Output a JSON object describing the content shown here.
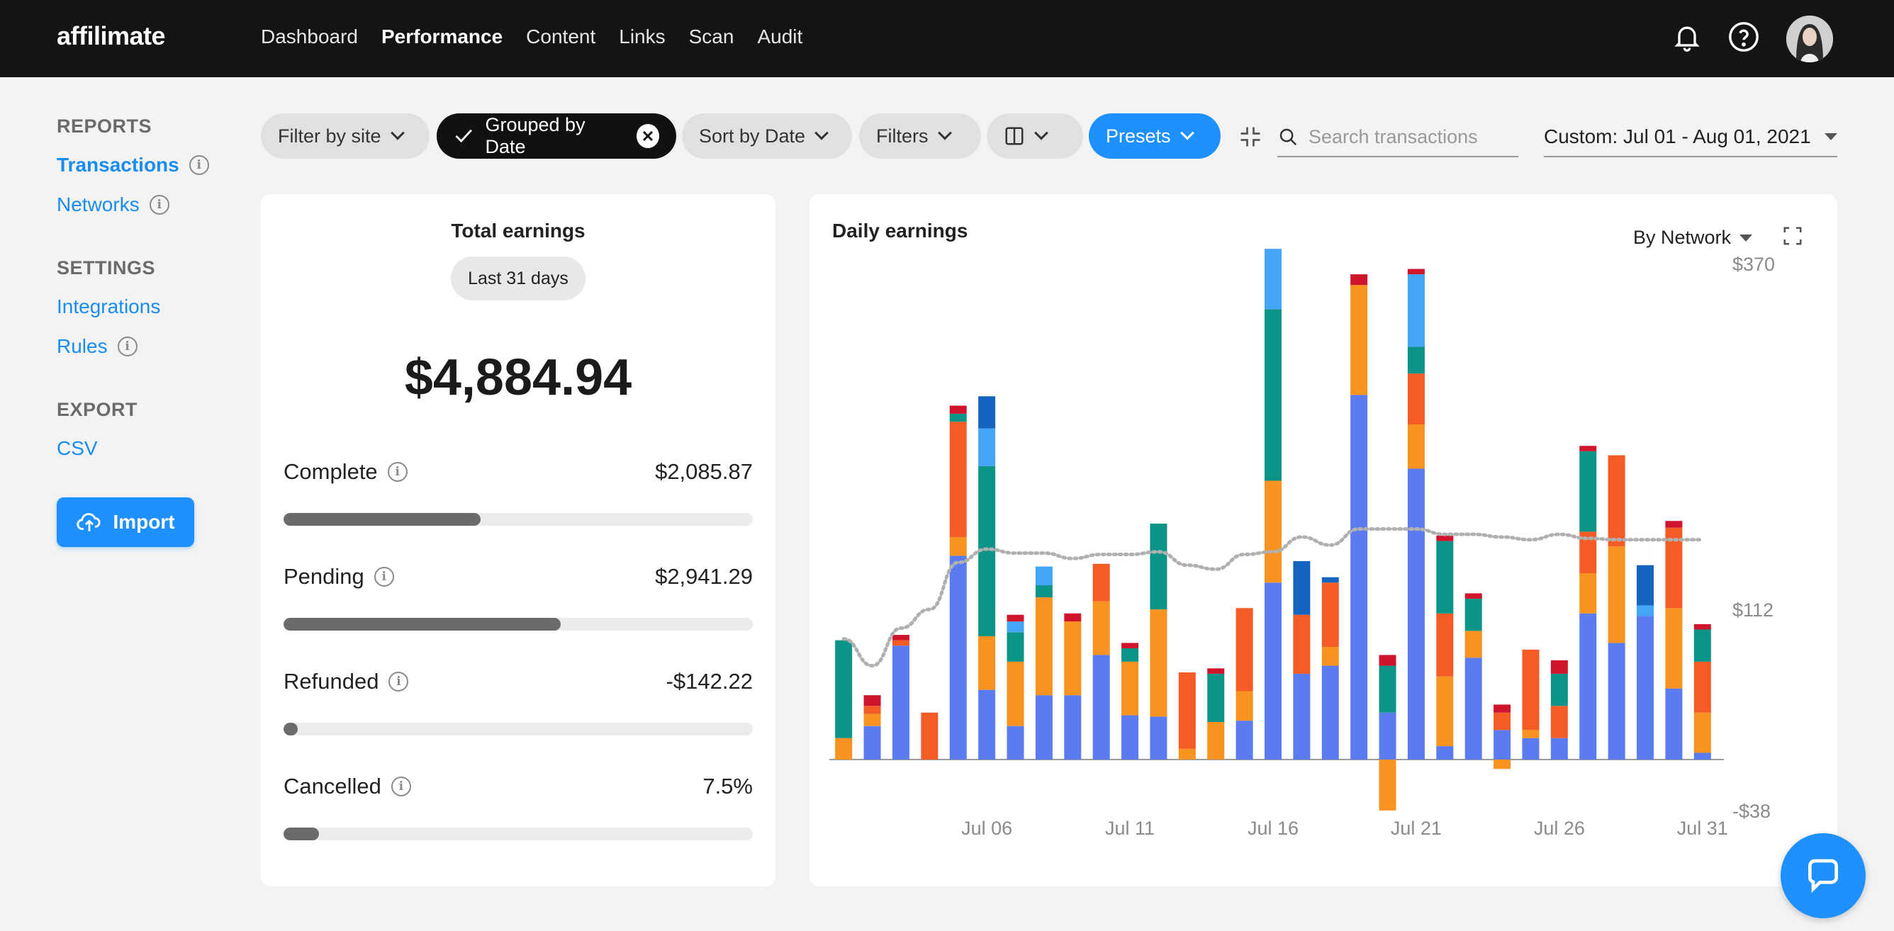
{
  "nav": {
    "logo": "affilimate",
    "links": [
      "Dashboard",
      "Performance",
      "Content",
      "Links",
      "Scan",
      "Audit"
    ],
    "active_link": "Performance"
  },
  "sidebar": {
    "reports_heading": "REPORTS",
    "transactions": "Transactions",
    "networks": "Networks",
    "settings_heading": "SETTINGS",
    "integrations": "Integrations",
    "rules": "Rules",
    "export_heading": "EXPORT",
    "csv": "CSV",
    "import_label": "Import"
  },
  "filters": {
    "filter_by_site": "Filter by site",
    "grouped_by_date": "Grouped by Date",
    "sort_by_date": "Sort by Date",
    "filters": "Filters",
    "presets": "Presets",
    "search_placeholder": "Search transactions",
    "date_range": "Custom: Jul 01 - Aug 01, 2021"
  },
  "total_earnings": {
    "title": "Total earnings",
    "period": "Last 31 days",
    "amount": "$4,884.94",
    "stats": [
      {
        "label": "Complete",
        "value": "$2,085.87",
        "progress": 0.42
      },
      {
        "label": "Pending",
        "value": "$2,941.29",
        "progress": 0.59
      },
      {
        "label": "Refunded",
        "value": "-$142.22",
        "progress": 0.03
      },
      {
        "label": "Cancelled",
        "value": "7.5%",
        "progress": 0.075
      }
    ]
  },
  "daily_earnings": {
    "title": "Daily earnings",
    "group_by": "By Network"
  },
  "colors": {
    "blue": "#5b7cf0",
    "teal": "#0d9488",
    "orange": "#f7931e",
    "red_orange": "#f45b25",
    "light_blue": "#42a5f5",
    "dark_blue": "#1565c0",
    "crimson": "#d0142c",
    "accent": "#1e90ff"
  },
  "chart_data": {
    "type": "bar",
    "stacked": true,
    "ylim": [
      -38,
      370
    ],
    "y_ticks": [
      "$370",
      "$112",
      "-$38"
    ],
    "x_ticks": [
      "Jul 06",
      "Jul 11",
      "Jul 16",
      "Jul 21",
      "Jul 26",
      "Jul 31"
    ],
    "days": [
      "Jul 01",
      "Jul 02",
      "Jul 03",
      "Jul 04",
      "Jul 05",
      "Jul 06",
      "Jul 07",
      "Jul 08",
      "Jul 09",
      "Jul 10",
      "Jul 11",
      "Jul 12",
      "Jul 13",
      "Jul 14",
      "Jul 15",
      "Jul 16",
      "Jul 17",
      "Jul 18",
      "Jul 19",
      "Jul 20",
      "Jul 21",
      "Jul 22",
      "Jul 23",
      "Jul 24",
      "Jul 25",
      "Jul 26",
      "Jul 27",
      "Jul 28",
      "Jul 29",
      "Jul 30",
      "Jul 31"
    ],
    "series": [
      {
        "color_key": "blue",
        "values": [
          0,
          25,
          85,
          0,
          152,
          52,
          25,
          48,
          48,
          78,
          33,
          32,
          0,
          0,
          29,
          132,
          64,
          70,
          272,
          35,
          217,
          10,
          76,
          22,
          16,
          16,
          109,
          87,
          107,
          53,
          5
        ]
      },
      {
        "color_key": "orange",
        "values": [
          16,
          9,
          0,
          0,
          14,
          40,
          48,
          73,
          55,
          40,
          40,
          80,
          8,
          28,
          22,
          76,
          0,
          14,
          82,
          0,
          33,
          52,
          20,
          -7,
          6,
          0,
          30,
          72,
          0,
          60,
          30
        ]
      },
      {
        "color_key": "red_orange",
        "values": [
          0,
          6,
          4,
          35,
          86,
          0,
          0,
          0,
          0,
          28,
          0,
          0,
          57,
          0,
          62,
          0,
          44,
          48,
          0,
          0,
          38,
          47,
          0,
          13,
          60,
          24,
          31,
          68,
          0,
          60,
          38
        ]
      },
      {
        "color_key": "teal",
        "values": [
          73,
          0,
          0,
          0,
          6,
          127,
          22,
          9,
          0,
          0,
          10,
          64,
          0,
          36,
          0,
          128,
          0,
          0,
          0,
          35,
          20,
          54,
          24,
          0,
          0,
          24,
          60,
          0,
          0,
          0,
          24
        ]
      },
      {
        "color_key": "light_blue",
        "values": [
          0,
          0,
          0,
          0,
          0,
          28,
          8,
          14,
          0,
          0,
          0,
          0,
          0,
          0,
          0,
          45,
          0,
          0,
          0,
          0,
          54,
          0,
          0,
          0,
          0,
          0,
          0,
          0,
          8,
          0,
          0
        ]
      },
      {
        "color_key": "dark_blue",
        "values": [
          0,
          0,
          0,
          0,
          0,
          24,
          0,
          0,
          0,
          0,
          0,
          0,
          0,
          0,
          0,
          0,
          40,
          4,
          0,
          0,
          0,
          0,
          0,
          0,
          0,
          0,
          0,
          0,
          30,
          0,
          0
        ]
      },
      {
        "color_key": "crimson",
        "values": [
          0,
          8,
          4,
          0,
          6,
          0,
          5,
          0,
          6,
          0,
          4,
          0,
          0,
          4,
          0,
          0,
          0,
          0,
          8,
          8,
          4,
          4,
          4,
          6,
          0,
          10,
          4,
          0,
          0,
          5,
          4
        ]
      },
      {
        "color_key": "orange_negative",
        "values": [
          0,
          0,
          0,
          0,
          0,
          0,
          0,
          0,
          0,
          0,
          0,
          0,
          0,
          0,
          0,
          0,
          0,
          0,
          0,
          -38,
          0,
          0,
          0,
          0,
          0,
          0,
          0,
          0,
          0,
          0,
          0
        ]
      }
    ],
    "trend_line": [
      90,
      70,
      98,
      112,
      147,
      157,
      154,
      154,
      150,
      153,
      153,
      155,
      145,
      142,
      153,
      155,
      166,
      160,
      172,
      172,
      172,
      168,
      168,
      166,
      164,
      168,
      165,
      164,
      164,
      164,
      164
    ]
  }
}
